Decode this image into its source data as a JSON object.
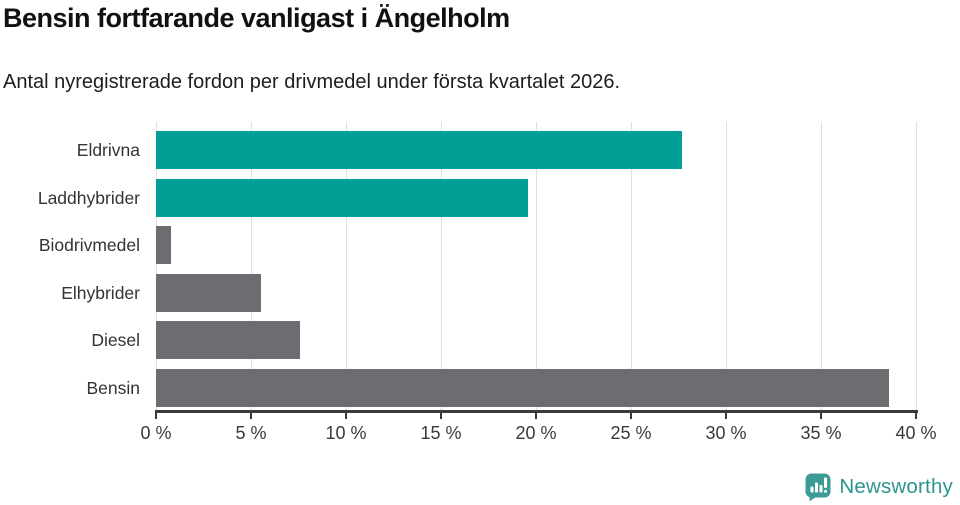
{
  "header": {
    "title": "Bensin fortfarande vanligast i Ängelholm",
    "subtitle": "Antal nyregistrerade fordon per drivmedel under första kvartalet 2026."
  },
  "chart_data": {
    "type": "bar",
    "orientation": "horizontal",
    "title": "Bensin fortfarande vanligast i Ängelholm",
    "subtitle": "Antal nyregistrerade fordon per drivmedel under första kvartalet 2026.",
    "categories": [
      "Eldrivna",
      "Laddhybrider",
      "Biodrivmedel",
      "Elhybrider",
      "Diesel",
      "Bensin"
    ],
    "values": [
      27.7,
      19.6,
      0.8,
      5.5,
      7.6,
      38.6
    ],
    "unit": "%",
    "bar_colors": [
      "#00A096",
      "#00A096",
      "#6E6B71",
      "#6E6B71",
      "#6E6B71",
      "#6E6B71"
    ],
    "xlim": [
      0,
      40
    ],
    "x_tick_step": 5,
    "x_tick_labels": [
      "0 %",
      "5 %",
      "10 %",
      "15 %",
      "20 %",
      "25 %",
      "30 %",
      "35 %",
      "40 %"
    ],
    "grid": "vertical-only",
    "legend": "none",
    "xlabel": "",
    "ylabel": ""
  },
  "branding": {
    "logo_text": "Newsworthy",
    "logo_text_color": "#2E948E",
    "logo_icon_color": "#3D9B95",
    "logo_icon": "bar-chart-speech-bubble-icon"
  },
  "colors": {
    "accent_teal": "#00A096",
    "neutral_gray": "#6E6B71",
    "axis": "#3A3A3A",
    "gridline": "#E0E0E0",
    "background": "#FFFFFF"
  }
}
